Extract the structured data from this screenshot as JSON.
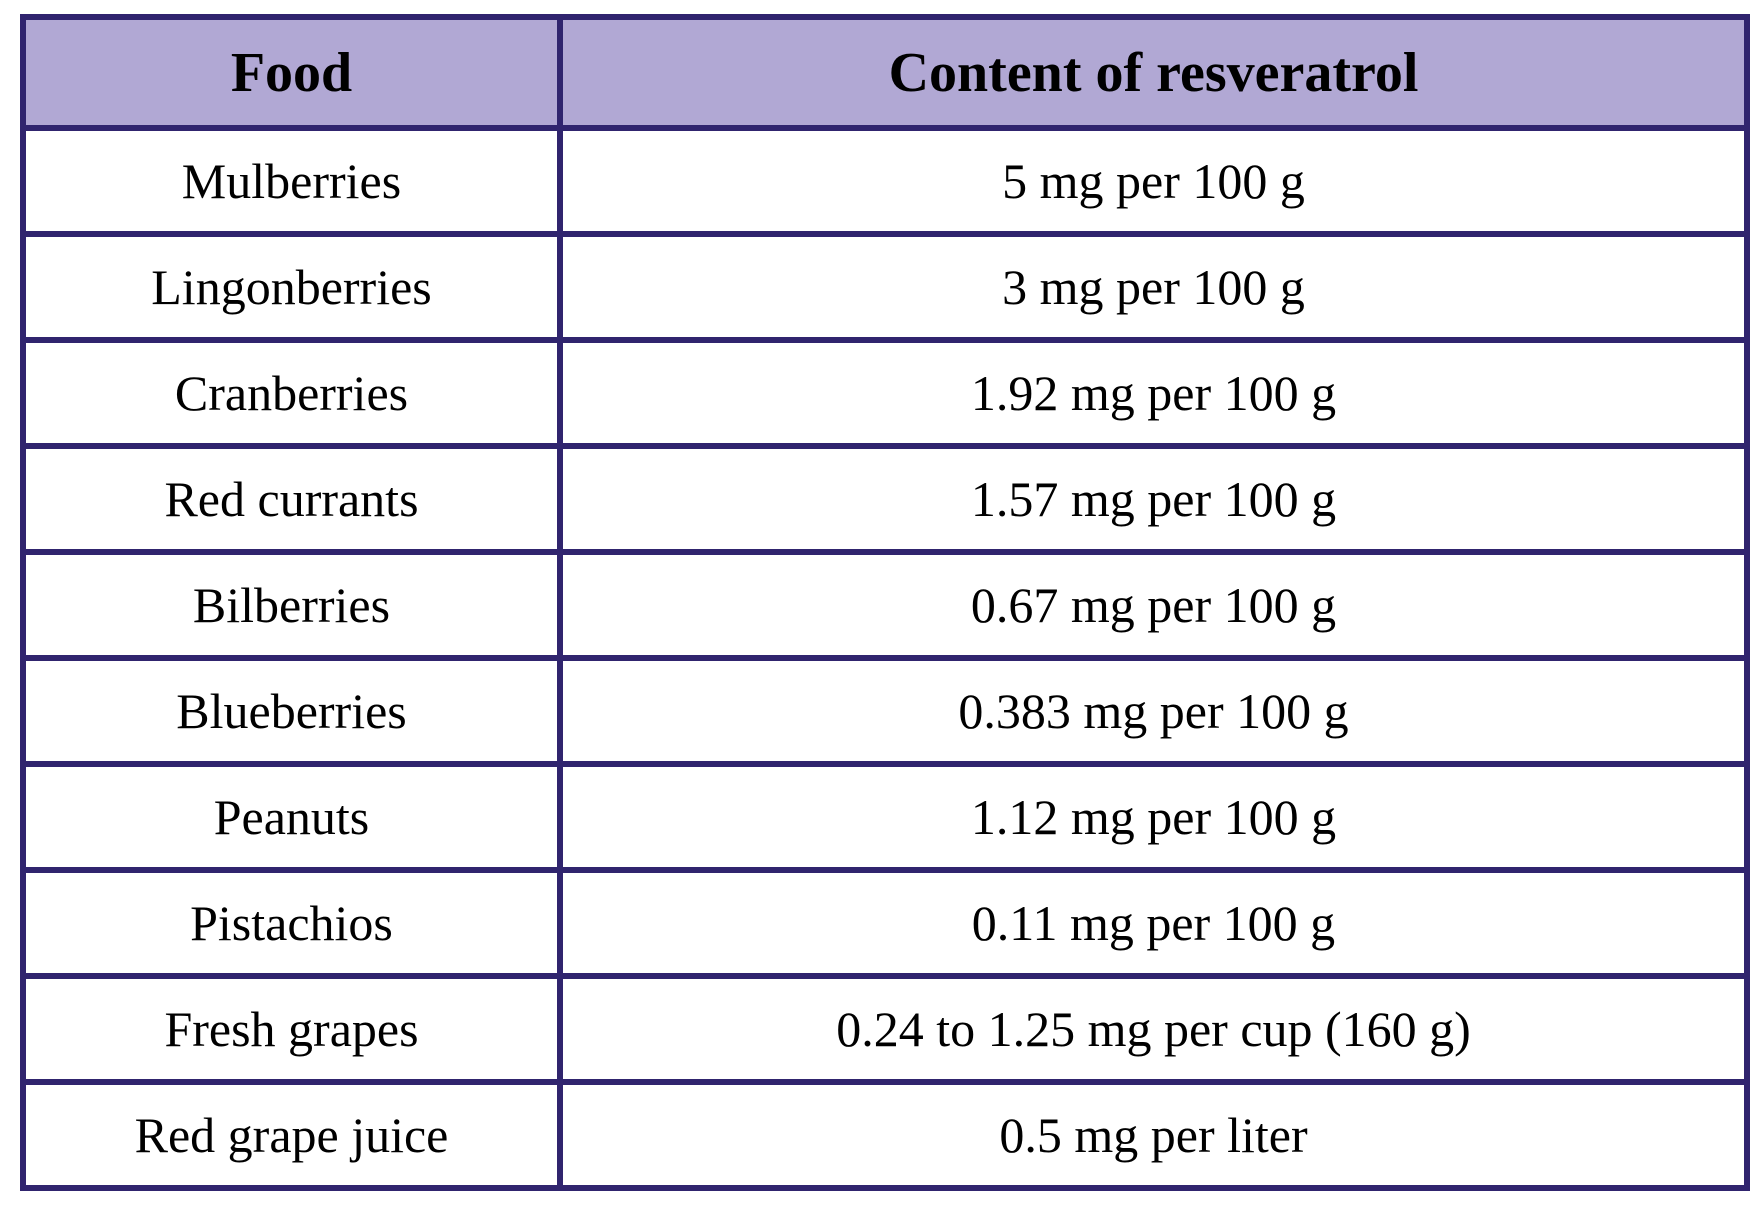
{
  "table": {
    "headers": {
      "food": "Food",
      "content": "Content of resveratrol"
    },
    "rows": [
      {
        "food": "Mulberries",
        "content": "5 mg per 100 g"
      },
      {
        "food": "Lingonberries",
        "content": "3 mg per 100 g"
      },
      {
        "food": "Cranberries",
        "content": "1.92 mg per 100 g"
      },
      {
        "food": "Red currants",
        "content": "1.57 mg per 100 g"
      },
      {
        "food": "Bilberries",
        "content": "0.67 mg per 100 g"
      },
      {
        "food": "Blueberries",
        "content": "0.383 mg per 100 g"
      },
      {
        "food": "Peanuts",
        "content": "1.12 mg per 100 g"
      },
      {
        "food": "Pistachios",
        "content": "0.11 mg per 100 g"
      },
      {
        "food": "Fresh grapes",
        "content": "0.24 to 1.25 mg per cup (160 g)"
      },
      {
        "food": "Red grape juice",
        "content": "0.5 mg per liter"
      }
    ]
  },
  "colors": {
    "header_background": "#b1a8d4",
    "border": "#30246e",
    "cell_background": "#ffffff",
    "text": "#000000"
  }
}
